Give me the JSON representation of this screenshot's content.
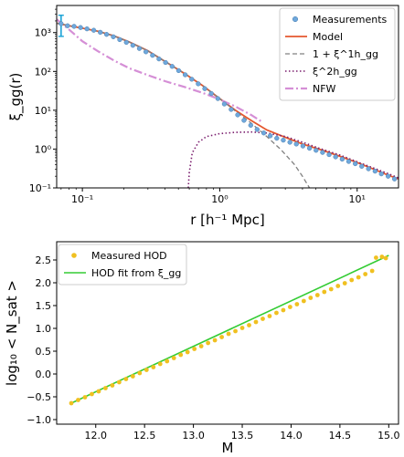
{
  "colors": {
    "measurements": "#6fa8dc",
    "model": "#e4572e",
    "one_halo": "#808080",
    "two_halo": "#7b1f6f",
    "nfw": "#d58fd6",
    "measured_hod": "#f0c020",
    "hod_fit": "#33cc33",
    "errorbar": "#1aa3d6"
  },
  "chart_data": [
    {
      "type": "line",
      "scale": "log-log",
      "xlabel": "r [h⁻¹ Mpc]",
      "ylabel": "ξ_gg(r)",
      "xlim": [
        0.065,
        20
      ],
      "ylim": [
        0.1,
        5000
      ],
      "xticks": [
        {
          "value": 0.1,
          "label": "10⁻¹"
        },
        {
          "value": 1,
          "label": "10⁰"
        },
        {
          "value": 10,
          "label": "10¹"
        }
      ],
      "yticks": [
        {
          "value": 0.1,
          "label": "10⁻¹"
        },
        {
          "value": 1,
          "label": "10⁰"
        },
        {
          "value": 10,
          "label": "10¹"
        },
        {
          "value": 100,
          "label": "10²"
        },
        {
          "value": 1000,
          "label": "10³"
        }
      ],
      "legend": {
        "position": "top-right",
        "entries": [
          {
            "label": "Measurements",
            "marker": "circle"
          },
          {
            "label": "Model",
            "marker": "solid"
          },
          {
            "label": "1 + ξ^1h_gg",
            "marker": "dashed"
          },
          {
            "label": "ξ^2h_gg",
            "marker": "dotted"
          },
          {
            "label": "NFW",
            "marker": "dashdot"
          }
        ]
      },
      "series": [
        {
          "name": "Measurements",
          "style": "points",
          "x": [
            0.07,
            0.078,
            0.087,
            0.097,
            0.108,
            0.121,
            0.135,
            0.15,
            0.168,
            0.187,
            0.209,
            0.233,
            0.26,
            0.29,
            0.324,
            0.361,
            0.403,
            0.45,
            0.502,
            0.56,
            0.625,
            0.697,
            0.778,
            0.868,
            0.969,
            1.08,
            1.21,
            1.35,
            1.5,
            1.68,
            1.87,
            2.09,
            2.33,
            2.6,
            2.9,
            3.24,
            3.61,
            4.03,
            4.5,
            5.02,
            5.6,
            6.25,
            6.97,
            7.78,
            8.68,
            9.69,
            10.8,
            12.1,
            13.5,
            15.0,
            16.8,
            18.7
          ],
          "y": [
            1700,
            1500,
            1450,
            1350,
            1250,
            1150,
            1020,
            900,
            780,
            660,
            560,
            470,
            390,
            320,
            260,
            210,
            170,
            135,
            105,
            82,
            63,
            48,
            36,
            27,
            20,
            14.5,
            10.5,
            7.6,
            5.5,
            4.1,
            3.2,
            2.6,
            2.2,
            1.9,
            1.7,
            1.5,
            1.35,
            1.2,
            1.05,
            0.93,
            0.82,
            0.72,
            0.63,
            0.55,
            0.48,
            0.42,
            0.36,
            0.31,
            0.27,
            0.23,
            0.2,
            0.17
          ],
          "error_bar": {
            "x": 0.07,
            "low": 800,
            "high": 2800
          }
        },
        {
          "name": "Model",
          "style": "solid",
          "x": [
            0.065,
            0.08,
            0.1,
            0.13,
            0.17,
            0.22,
            0.3,
            0.4,
            0.55,
            0.75,
            1.0,
            1.3,
            1.7,
            2.2,
            3.0,
            4.0,
            5.5,
            7.5,
            10,
            13,
            17,
            20
          ],
          "y": [
            1750,
            1500,
            1300,
            1080,
            820,
            570,
            340,
            180,
            90,
            43,
            20,
            10,
            5.4,
            3.1,
            2.0,
            1.35,
            0.95,
            0.65,
            0.45,
            0.31,
            0.21,
            0.17
          ]
        },
        {
          "name": "1 + ξ^1h_gg",
          "style": "dashed",
          "x": [
            0.065,
            0.08,
            0.1,
            0.13,
            0.17,
            0.22,
            0.3,
            0.4,
            0.55,
            0.75,
            1.0,
            1.3,
            1.7,
            2.2,
            2.8,
            3.5,
            4.0,
            4.3,
            4.5
          ],
          "y": [
            1750,
            1500,
            1300,
            1080,
            820,
            570,
            340,
            180,
            90,
            43,
            20,
            9.5,
            4.6,
            2.1,
            0.95,
            0.4,
            0.2,
            0.13,
            0.1
          ]
        },
        {
          "name": "ξ^2h_gg",
          "style": "dotted",
          "x": [
            0.59,
            0.6,
            0.63,
            0.7,
            0.8,
            1.0,
            1.3,
            1.7,
            2.2,
            3.0,
            4.0,
            5.5,
            7.5,
            10,
            13,
            17,
            20
          ],
          "y": [
            0.1,
            0.25,
            0.8,
            1.5,
            2.1,
            2.5,
            2.7,
            2.75,
            2.6,
            2.1,
            1.5,
            1.0,
            0.7,
            0.47,
            0.33,
            0.23,
            0.18
          ]
        },
        {
          "name": "NFW",
          "style": "dashdot",
          "x": [
            0.065,
            0.08,
            0.1,
            0.13,
            0.17,
            0.22,
            0.3,
            0.4,
            0.55,
            0.75,
            1.0,
            1.3,
            1.7,
            2.0
          ],
          "y": [
            2200,
            1200,
            600,
            330,
            190,
            120,
            80,
            56,
            40,
            28,
            19,
            12.5,
            7.5,
            5.2
          ]
        }
      ]
    },
    {
      "type": "scatter",
      "xlabel": "M",
      "ylabel": "log₁₀ < N_sat >",
      "xlim": [
        11.6,
        15.1
      ],
      "ylim": [
        -1.1,
        2.9
      ],
      "xticks": [
        {
          "value": 12.0,
          "label": "12.0"
        },
        {
          "value": 12.5,
          "label": "12.5"
        },
        {
          "value": 13.0,
          "label": "13.0"
        },
        {
          "value": 13.5,
          "label": "13.5"
        },
        {
          "value": 14.0,
          "label": "14.0"
        },
        {
          "value": 14.5,
          "label": "14.5"
        },
        {
          "value": 15.0,
          "label": "15.0"
        }
      ],
      "yticks": [
        {
          "value": -1.0,
          "label": "−1.0"
        },
        {
          "value": -0.5,
          "label": "−0.5"
        },
        {
          "value": 0.0,
          "label": "0.0"
        },
        {
          "value": 0.5,
          "label": "0.5"
        },
        {
          "value": 1.0,
          "label": "1.0"
        },
        {
          "value": 1.5,
          "label": "1.5"
        },
        {
          "value": 2.0,
          "label": "2.0"
        },
        {
          "value": 2.5,
          "label": "2.5"
        }
      ],
      "legend": {
        "position": "top-left",
        "entries": [
          {
            "label": "Measured HOD",
            "marker": "circle"
          },
          {
            "label": "HOD fit from ξ_gg",
            "marker": "solid"
          }
        ]
      },
      "series": [
        {
          "name": "Measured HOD",
          "style": "points",
          "x": [
            11.75,
            11.82,
            11.89,
            11.96,
            12.03,
            12.1,
            12.17,
            12.24,
            12.31,
            12.38,
            12.45,
            12.52,
            12.59,
            12.66,
            12.73,
            12.8,
            12.87,
            12.94,
            13.01,
            13.08,
            13.15,
            13.22,
            13.29,
            13.36,
            13.43,
            13.5,
            13.57,
            13.64,
            13.71,
            13.78,
            13.85,
            13.92,
            13.99,
            14.06,
            14.13,
            14.2,
            14.27,
            14.34,
            14.41,
            14.48,
            14.55,
            14.62,
            14.69,
            14.76,
            14.83,
            14.87,
            14.93,
            14.97
          ],
          "y": [
            -0.64,
            -0.57,
            -0.51,
            -0.44,
            -0.38,
            -0.31,
            -0.25,
            -0.18,
            -0.11,
            -0.05,
            0.02,
            0.09,
            0.15,
            0.22,
            0.28,
            0.35,
            0.42,
            0.48,
            0.55,
            0.61,
            0.68,
            0.74,
            0.81,
            0.88,
            0.94,
            1.01,
            1.07,
            1.14,
            1.21,
            1.27,
            1.34,
            1.4,
            1.47,
            1.53,
            1.6,
            1.67,
            1.73,
            1.8,
            1.86,
            1.93,
            1.99,
            2.06,
            2.12,
            2.19,
            2.26,
            2.55,
            2.57,
            2.54
          ]
        },
        {
          "name": "HOD fit from ξ_gg",
          "style": "solid",
          "x": [
            11.75,
            15.0
          ],
          "y": [
            -0.64,
            2.6
          ]
        }
      ]
    }
  ]
}
